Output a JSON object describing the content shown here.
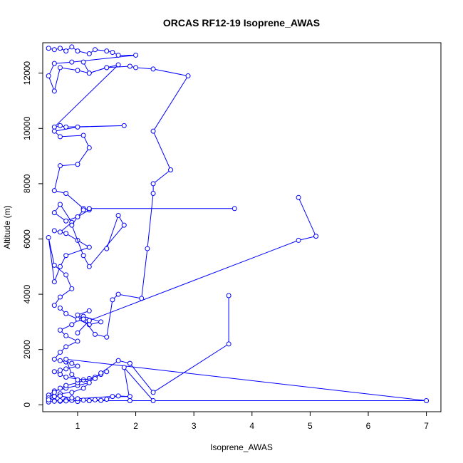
{
  "chart_data": {
    "type": "line",
    "title": "ORCAS RF12-19 Isoprene_AWAS",
    "xlabel": "Isoprene_AWAS",
    "ylabel": "Altitude (m)",
    "xlim": [
      0.4,
      7.25
    ],
    "ylim": [
      -250,
      13100
    ],
    "x_ticks": [
      1,
      2,
      3,
      4,
      5,
      6,
      7
    ],
    "x_tick_labels": [
      "1",
      "2",
      "3",
      "4",
      "5",
      "6",
      "7"
    ],
    "y_ticks": [
      0,
      2000,
      4000,
      6000,
      8000,
      10000,
      12000
    ],
    "y_tick_labels": [
      "0",
      "2000",
      "4000",
      "6000",
      "8000",
      "10000",
      "12000"
    ],
    "grid": false,
    "legend": "none",
    "series_color": "#0000ff",
    "series": [
      {
        "x": [
          0.5,
          0.6,
          0.7,
          0.8,
          0.9,
          1.0,
          1.2,
          1.3,
          1.5,
          1.6,
          1.7,
          2.0,
          0.9,
          0.6,
          0.5,
          0.6,
          0.7,
          1.0,
          1.2,
          1.5,
          1.7,
          0.6,
          0.7,
          0.8,
          1.8,
          1.0,
          0.6,
          0.7,
          1.1,
          1.2,
          1.0,
          0.7,
          0.6,
          0.8,
          1.1,
          1.2,
          1.0,
          0.8,
          0.6,
          0.7,
          0.9,
          0.7,
          0.6,
          0.8,
          1.0,
          1.2,
          0.8,
          0.7,
          0.6,
          0.5,
          0.6,
          0.8,
          0.9,
          0.7,
          0.6
        ],
        "y": [
          12900,
          12850,
          12900,
          12800,
          12950,
          12800,
          12700,
          12850,
          12800,
          12750,
          12650,
          12650,
          12400,
          12350,
          11900,
          11350,
          12200,
          12100,
          12000,
          12200,
          12300,
          10050,
          10100,
          10050,
          10100,
          10050,
          9900,
          9700,
          9750,
          9300,
          8700,
          8650,
          7750,
          7650,
          7100,
          7050,
          6800,
          6650,
          6950,
          7250,
          6600,
          6250,
          6300,
          6200,
          5950,
          5700,
          5400,
          5000,
          4450,
          6050,
          5050,
          4700,
          4200,
          3900,
          3600
        ]
      },
      {
        "x": [
          0.7,
          0.8,
          1.0,
          1.2,
          1.4,
          1.1,
          0.9,
          0.7,
          0.8,
          1.0,
          0.8,
          0.7,
          0.6,
          0.7,
          0.8,
          0.9,
          1.0,
          0.8,
          0.7,
          0.6,
          0.7,
          0.8,
          1.1,
          1.2,
          1.0,
          0.8,
          0.6,
          0.5,
          0.6,
          0.7,
          0.9,
          1.1,
          1.3,
          1.5,
          1.4,
          1.2,
          1.0,
          0.8,
          0.7,
          0.6,
          0.5,
          0.6,
          0.8,
          1.0
        ],
        "y": [
          3500,
          3300,
          3100,
          2900,
          3000,
          3200,
          2900,
          2700,
          2500,
          2300,
          2100,
          1900,
          1650,
          1600,
          1550,
          1500,
          1400,
          1300,
          1250,
          1200,
          1100,
          1000,
          900,
          800,
          700,
          600,
          500,
          350,
          300,
          400,
          450,
          600,
          1000,
          1200,
          1100,
          950,
          800,
          700,
          600,
          450,
          250,
          150,
          180,
          150
        ]
      },
      {
        "x": [
          1.1,
          1.2,
          1.5,
          1.9,
          2.0,
          2.3,
          2.9,
          2.3,
          2.6,
          2.3,
          2.3,
          2.2,
          2.1,
          1.7,
          1.6,
          1.5,
          1.3,
          1.1,
          1.2,
          1.0
        ],
        "y": [
          12400,
          12000,
          12200,
          12250,
          12200,
          12150,
          11900,
          9900,
          8500,
          8000,
          7650,
          5650,
          3850,
          4000,
          3800,
          2450,
          2550,
          3100,
          3050,
          2600
        ]
      },
      {
        "x": [
          1.2,
          3.7,
          1.2,
          1.1,
          1.0,
          0.9,
          1.1,
          1.2,
          1.8,
          1.7,
          1.5
        ],
        "y": [
          7100,
          7100,
          7100,
          7050,
          6800,
          6500,
          5400,
          5000,
          6500,
          6850,
          5650
        ]
      },
      {
        "x": [
          4.8,
          5.1,
          4.8,
          1.2,
          1.1,
          1.0,
          1.2
        ],
        "y": [
          7500,
          6100,
          5950,
          3050,
          3100,
          3250,
          3400
        ]
      },
      {
        "x": [
          3.6,
          3.6,
          2.3,
          1.9,
          1.7,
          1.4,
          1.3,
          1.0,
          0.9,
          0.8,
          7.0,
          1.9,
          1.8,
          2.3,
          1.2,
          0.7
        ],
        "y": [
          3950,
          2200,
          450,
          1500,
          1600,
          1150,
          950,
          900,
          1100,
          1650,
          150,
          150,
          1350,
          150,
          150,
          130
        ]
      },
      {
        "x": [
          0.5,
          0.6,
          0.7,
          0.8,
          0.9,
          1.0,
          1.1,
          1.2,
          1.3,
          1.4,
          1.5,
          1.6,
          1.9,
          1.7,
          1.0,
          0.9,
          0.7,
          0.6,
          0.5
        ],
        "y": [
          100,
          130,
          150,
          140,
          160,
          120,
          170,
          150,
          180,
          160,
          200,
          300,
          300,
          320,
          220,
          250,
          320,
          300,
          180
        ]
      }
    ]
  }
}
